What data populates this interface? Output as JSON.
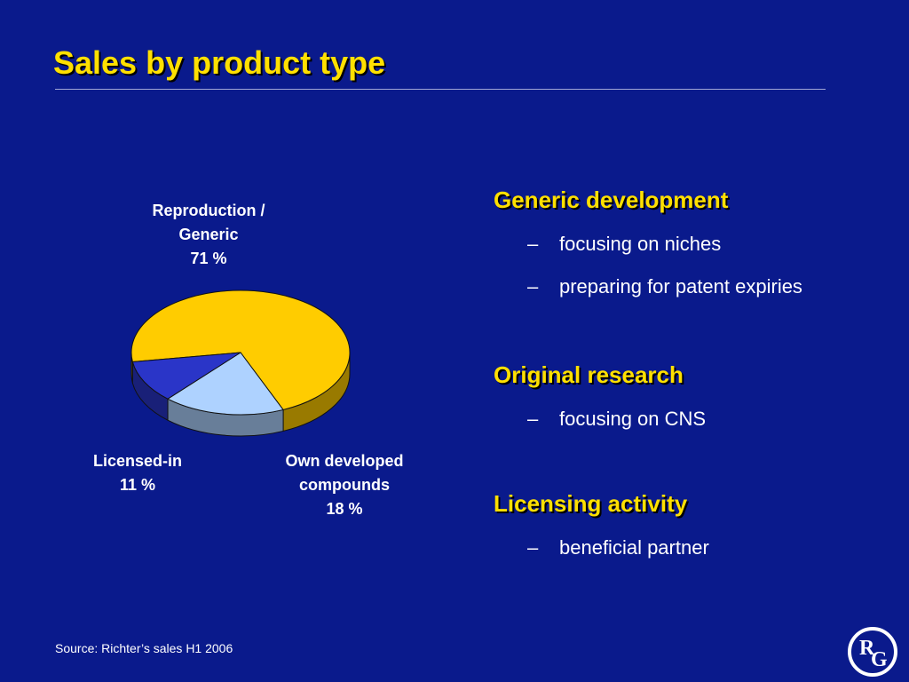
{
  "title": "Sales by product type",
  "source": "Source: Richter’s sales H1 2006",
  "logo": {
    "letters": [
      "R",
      "G"
    ],
    "icon": "rg-logo-icon"
  },
  "colors": {
    "background": "#0a1a8c",
    "title": "#ffe000",
    "slice_reproduction": "#ffcc00",
    "slice_licensed": "#2a35c8",
    "slice_own": "#aed2ff"
  },
  "chart_data": {
    "type": "pie",
    "slices": [
      {
        "label_lines": [
          "Reproduction /",
          "Generic",
          "71 %"
        ],
        "value": 71
      },
      {
        "label_lines": [
          "Own developed",
          "compounds",
          "18 %"
        ],
        "value": 18
      },
      {
        "label_lines": [
          "Licensed-in",
          "11 %"
        ],
        "value": 11
      }
    ]
  },
  "sections": [
    {
      "heading": "Generic development",
      "bullets": [
        "focusing on niches",
        "preparing for patent expiries"
      ]
    },
    {
      "heading": "Original research",
      "bullets": [
        "focusing on CNS"
      ]
    },
    {
      "heading": "Licensing activity",
      "bullets": [
        "beneficial partner"
      ]
    }
  ],
  "dash": "–"
}
